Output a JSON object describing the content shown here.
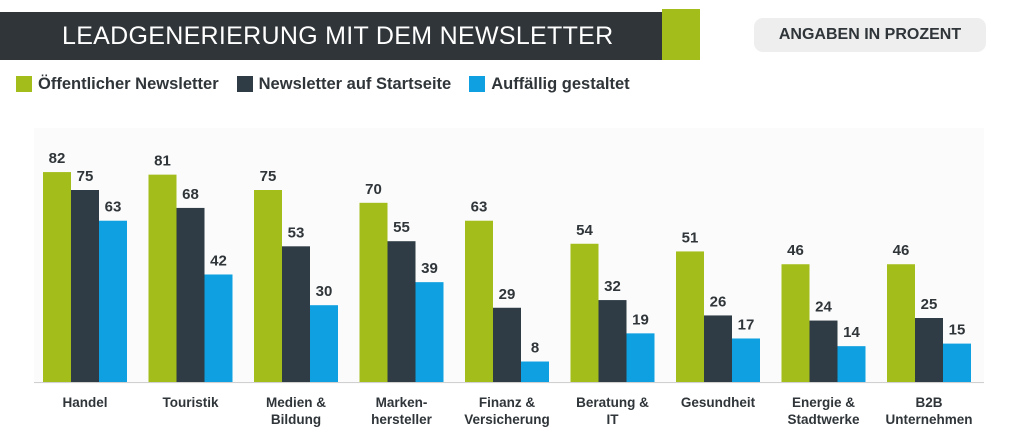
{
  "header": {
    "title": "LEADGENERIERUNG MIT DEM NEWSLETTER",
    "unit_badge": "ANGABEN IN PROZENT"
  },
  "colors": {
    "title_bg": "#2f3539",
    "accent": "#a3bd1a",
    "series": [
      "#a3bd1a",
      "#2f3c45",
      "#0ea0e0"
    ],
    "text": "#2f3539"
  },
  "chart_data": {
    "type": "bar",
    "title": "LEADGENERIERUNG MIT DEM NEWSLETTER",
    "ylabel": "ANGABEN IN PROZENT",
    "xlabel": "",
    "ylim": [
      0,
      100
    ],
    "grid": false,
    "legend": "top-left",
    "categories": [
      [
        "Handel"
      ],
      [
        "Touristik"
      ],
      [
        "Medien &",
        "Bildung"
      ],
      [
        "Marken-",
        "hersteller"
      ],
      [
        "Finanz &",
        "Versicherung"
      ],
      [
        "Beratung &",
        "IT"
      ],
      [
        "Gesundheit"
      ],
      [
        "Energie &",
        "Stadtwerke"
      ],
      [
        "B2B",
        "Unternehmen"
      ]
    ],
    "series": [
      {
        "name": "Öffentlicher Newsletter",
        "values": [
          82,
          81,
          75,
          70,
          63,
          54,
          51,
          46,
          46
        ]
      },
      {
        "name": "Newsletter auf Startseite",
        "values": [
          75,
          68,
          53,
          55,
          29,
          32,
          26,
          24,
          25
        ]
      },
      {
        "name": "Auffällig gestaltet",
        "values": [
          63,
          42,
          30,
          39,
          8,
          19,
          17,
          14,
          15
        ]
      }
    ]
  }
}
